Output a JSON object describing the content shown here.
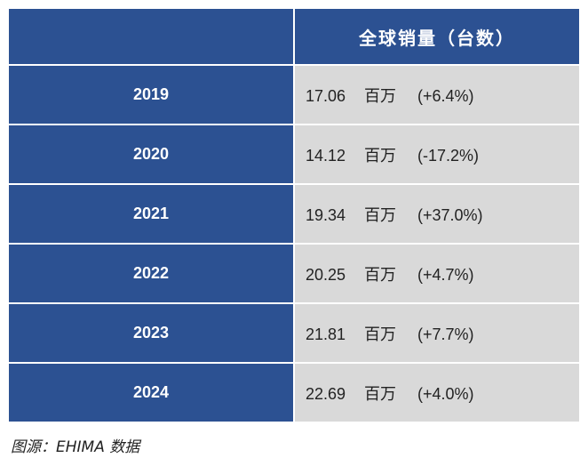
{
  "table": {
    "title": "全球销量（台数）",
    "rows": [
      {
        "year": "2019",
        "value": "17.06",
        "unit": "百万",
        "change": "(+6.4%)"
      },
      {
        "year": "2020",
        "value": "14.12",
        "unit": "百万",
        "change": "(-17.2%)"
      },
      {
        "year": "2021",
        "value": "19.34",
        "unit": "百万",
        "change": "(+37.0%)"
      },
      {
        "year": "2022",
        "value": "20.25",
        "unit": "百万",
        "change": "(+4.7%)"
      },
      {
        "year": "2023",
        "value": "21.81",
        "unit": "百万",
        "change": "(+7.7%)"
      },
      {
        "year": "2024",
        "value": "22.69",
        "unit": "百万",
        "change": "(+4.0%)"
      }
    ]
  },
  "footer": {
    "source": "图源：EHIMA 数据"
  }
}
